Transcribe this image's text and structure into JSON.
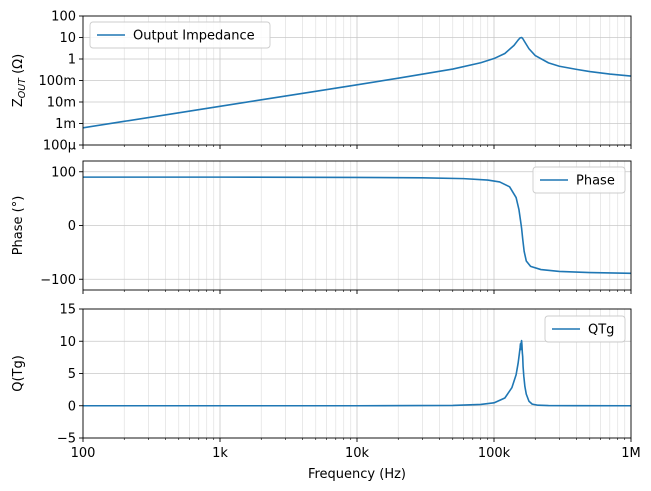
{
  "chart_data": [
    {
      "type": "line",
      "title": "",
      "xlabel": "",
      "ylabel_main": "Z",
      "ylabel_sub": "OUT",
      "ylabel_unit": " (Ω)",
      "xscale": "log",
      "yscale": "log",
      "xlim": [
        100,
        1000000
      ],
      "ylim": [
        0.0001,
        100
      ],
      "grid": "major and minor",
      "legend": "top-left",
      "yticks": [
        {
          "value": 100,
          "label": "100"
        },
        {
          "value": 10,
          "label": "10"
        },
        {
          "value": 1,
          "label": "1"
        },
        {
          "value": 0.1,
          "label": "100m"
        },
        {
          "value": 0.01,
          "label": "10m"
        },
        {
          "value": 0.001,
          "label": "1m"
        },
        {
          "value": 0.0001,
          "label": "100µ"
        }
      ],
      "series": [
        {
          "name": "Output Impedance",
          "color": "#1f77b4",
          "x": [
            100,
            200,
            500,
            1000,
            2000,
            5000,
            10000,
            20000,
            50000,
            80000,
            100000,
            120000,
            140000,
            150000,
            155000,
            159000,
            162000,
            167000,
            180000,
            200000,
            250000,
            300000,
            400000,
            500000,
            700000,
            1000000
          ],
          "y": [
            0.00063,
            0.00126,
            0.00315,
            0.0063,
            0.0126,
            0.0315,
            0.063,
            0.128,
            0.34,
            0.67,
            1.05,
            1.8,
            4.3,
            7.6,
            9.6,
            10.0,
            9.0,
            6.5,
            3.0,
            1.45,
            0.66,
            0.46,
            0.33,
            0.26,
            0.2,
            0.16
          ]
        }
      ]
    },
    {
      "type": "line",
      "title": "",
      "xlabel": "",
      "ylabel": "Phase (°)",
      "xscale": "log",
      "xlim": [
        100,
        1000000
      ],
      "ylim": [
        -120,
        120
      ],
      "grid": "major and minor",
      "legend": "top-right",
      "yticks": [
        {
          "value": 100,
          "label": "100"
        },
        {
          "value": 0,
          "label": "0"
        },
        {
          "value": -100,
          "label": "−100"
        }
      ],
      "series": [
        {
          "name": "Phase",
          "color": "#1f77b4",
          "x": [
            100,
            1000,
            10000,
            30000,
            60000,
            90000,
            110000,
            130000,
            145000,
            152000,
            156000,
            159000,
            162000,
            166000,
            172000,
            185000,
            220000,
            300000,
            500000,
            1000000
          ],
          "y": [
            90,
            90,
            89.5,
            88.7,
            87.2,
            84.5,
            81.0,
            72.0,
            52.0,
            30.0,
            10.0,
            -5.0,
            -25.0,
            -48.0,
            -66.0,
            -76.0,
            -82.0,
            -85.5,
            -87.5,
            -89.0
          ]
        }
      ]
    },
    {
      "type": "line",
      "title": "",
      "xlabel": "Frequency (Hz)",
      "ylabel": "Q(Tg)",
      "xscale": "log",
      "xlim": [
        100,
        1000000
      ],
      "ylim": [
        -5,
        15
      ],
      "grid": "major and minor",
      "legend": "top-right",
      "yticks": [
        {
          "value": 15,
          "label": "15"
        },
        {
          "value": 10,
          "label": "10"
        },
        {
          "value": 5,
          "label": "5"
        },
        {
          "value": 0,
          "label": "0"
        },
        {
          "value": -5,
          "label": "−5"
        }
      ],
      "xticks": [
        {
          "value": 100,
          "label": "100"
        },
        {
          "value": 1000,
          "label": "1k"
        },
        {
          "value": 10000,
          "label": "10k"
        },
        {
          "value": 100000,
          "label": "100k"
        },
        {
          "value": 1000000,
          "label": "1M"
        }
      ],
      "series": [
        {
          "name": "QTg",
          "color": "#1f77b4",
          "x": [
            100,
            1000,
            10000,
            50000,
            80000,
            100000,
            120000,
            135000,
            145000,
            150000,
            153000,
            155000,
            156000,
            157000,
            158000,
            159000,
            160000,
            161000,
            162000,
            163000,
            165000,
            168000,
            172000,
            180000,
            190000,
            210000,
            250000,
            400000,
            1000000
          ],
          "y": [
            0,
            0,
            0,
            0.05,
            0.2,
            0.45,
            1.2,
            2.8,
            4.8,
            6.6,
            8.0,
            9.0,
            9.6,
            8.7,
            9.8,
            10.1,
            9.4,
            8.2,
            7.6,
            6.1,
            4.6,
            3.0,
            1.8,
            0.7,
            0.25,
            0.08,
            0.03,
            0.01,
            0
          ]
        }
      ]
    }
  ]
}
